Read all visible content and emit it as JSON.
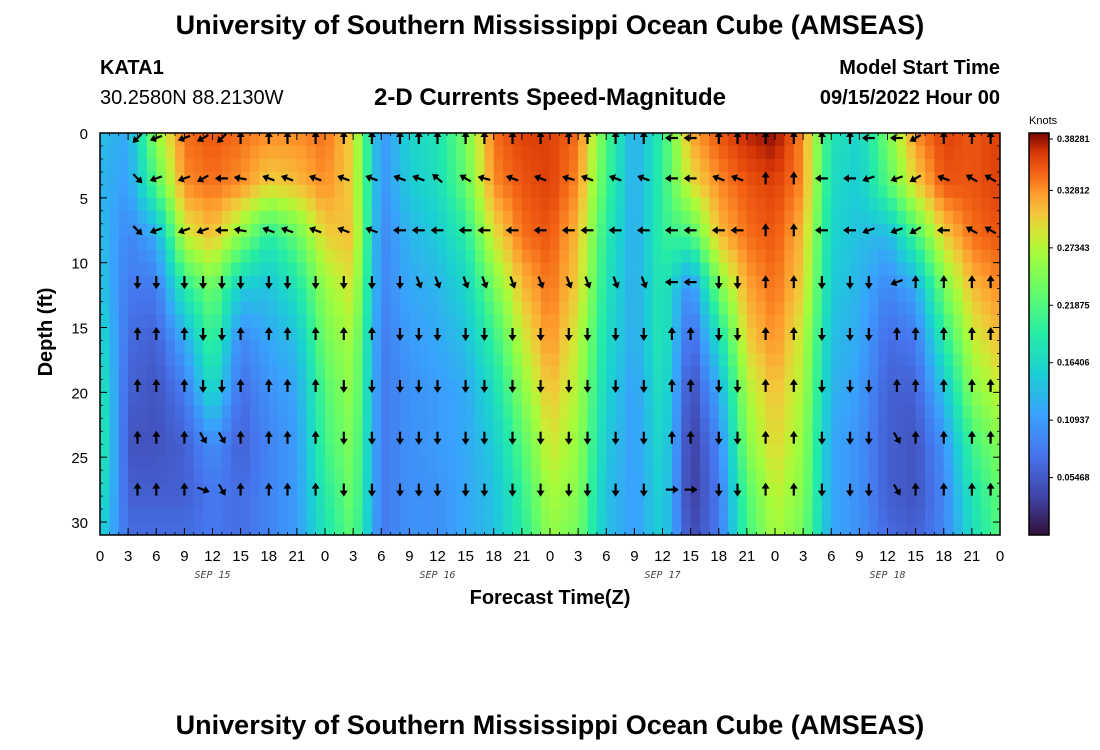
{
  "header": {
    "title": "University of Southern Mississippi Ocean Cube (AMSEAS)",
    "station_id": "KATA1",
    "coordinates": "30.2580N  88.2130W",
    "plot_title": "2-D Currents Speed-Magnitude",
    "model_start_label": "Model Start Time",
    "model_start_value": "09/15/2022 Hour 00"
  },
  "footer": {
    "title": "University of Southern Mississippi Ocean Cube (AMSEAS)"
  },
  "chart_data": {
    "type": "heatmap",
    "title": "2-D Currents Speed-Magnitude",
    "xlabel": "Forecast Time(Z)",
    "ylabel": "Depth (ft)",
    "x_ticks": [
      "0",
      "3",
      "6",
      "9",
      "12",
      "15",
      "18",
      "21",
      "0",
      "3",
      "6",
      "9",
      "12",
      "15",
      "18",
      "21",
      "0",
      "3",
      "6",
      "9",
      "12",
      "15",
      "18",
      "21",
      "0",
      "3",
      "6",
      "9",
      "12",
      "15",
      "18",
      "21",
      "0"
    ],
    "x_tick_hours": [
      0,
      3,
      6,
      9,
      12,
      15,
      18,
      21,
      24,
      27,
      30,
      33,
      36,
      39,
      42,
      45,
      48,
      51,
      54,
      57,
      60,
      63,
      66,
      69,
      72,
      75,
      78,
      81,
      84,
      87,
      90,
      93,
      96
    ],
    "date_labels": [
      {
        "label": "SEP 15",
        "hour": 12
      },
      {
        "label": "SEP 16",
        "hour": 36
      },
      {
        "label": "SEP 17",
        "hour": 60
      },
      {
        "label": "SEP 18",
        "hour": 84
      }
    ],
    "xlim": [
      0,
      96
    ],
    "y_ticks": [
      "0",
      "5",
      "10",
      "15",
      "20",
      "25",
      "30"
    ],
    "y_tick_values": [
      0,
      5,
      10,
      15,
      20,
      25,
      30
    ],
    "ylim": [
      0,
      31
    ],
    "colorbar": {
      "unit": "Knots",
      "min": 0.0,
      "max": 0.3828,
      "tick_labels": [
        "0.38281",
        "0.32812",
        "0.27343",
        "0.21875",
        "0.16406",
        "0.10937",
        "0.05468"
      ],
      "tick_values": [
        0.38281,
        0.32812,
        0.27343,
        0.21875,
        0.16406,
        0.10937,
        0.05468
      ]
    },
    "depths": [
      0,
      4,
      8,
      12,
      16,
      20,
      24,
      28,
      31
    ],
    "hours": [
      0,
      3,
      6,
      9,
      12,
      15,
      18,
      21,
      24,
      27,
      30,
      33,
      36,
      39,
      42,
      45,
      48,
      51,
      54,
      57,
      60,
      63,
      66,
      69,
      72,
      75,
      78,
      81,
      84,
      87,
      90,
      93,
      96
    ],
    "speed": [
      [
        0.14,
        0.12,
        0.26,
        0.34,
        0.35,
        0.34,
        0.33,
        0.33,
        0.34,
        0.3,
        0.1,
        0.16,
        0.18,
        0.24,
        0.34,
        0.36,
        0.36,
        0.34,
        0.22,
        0.12,
        0.2,
        0.32,
        0.35,
        0.37,
        0.38,
        0.33,
        0.18,
        0.16,
        0.24,
        0.33,
        0.36,
        0.35,
        0.36
      ],
      [
        0.13,
        0.11,
        0.22,
        0.33,
        0.34,
        0.33,
        0.3,
        0.31,
        0.33,
        0.3,
        0.1,
        0.15,
        0.17,
        0.23,
        0.33,
        0.35,
        0.36,
        0.33,
        0.21,
        0.12,
        0.2,
        0.29,
        0.33,
        0.35,
        0.36,
        0.33,
        0.17,
        0.15,
        0.22,
        0.3,
        0.35,
        0.35,
        0.36
      ],
      [
        0.14,
        0.09,
        0.12,
        0.28,
        0.31,
        0.25,
        0.19,
        0.23,
        0.3,
        0.31,
        0.09,
        0.13,
        0.15,
        0.19,
        0.29,
        0.34,
        0.35,
        0.31,
        0.19,
        0.12,
        0.2,
        0.21,
        0.31,
        0.34,
        0.35,
        0.31,
        0.16,
        0.14,
        0.13,
        0.21,
        0.3,
        0.34,
        0.35
      ],
      [
        0.15,
        0.08,
        0.08,
        0.19,
        0.24,
        0.15,
        0.14,
        0.18,
        0.26,
        0.29,
        0.09,
        0.12,
        0.13,
        0.16,
        0.24,
        0.31,
        0.34,
        0.3,
        0.18,
        0.12,
        0.19,
        0.09,
        0.24,
        0.32,
        0.34,
        0.3,
        0.15,
        0.13,
        0.09,
        0.12,
        0.24,
        0.31,
        0.33
      ],
      [
        0.17,
        0.07,
        0.06,
        0.12,
        0.21,
        0.09,
        0.12,
        0.14,
        0.24,
        0.27,
        0.08,
        0.11,
        0.12,
        0.14,
        0.2,
        0.28,
        0.33,
        0.28,
        0.17,
        0.12,
        0.19,
        0.06,
        0.17,
        0.3,
        0.33,
        0.28,
        0.14,
        0.12,
        0.07,
        0.08,
        0.19,
        0.28,
        0.31
      ],
      [
        0.19,
        0.06,
        0.05,
        0.08,
        0.17,
        0.07,
        0.1,
        0.12,
        0.22,
        0.26,
        0.08,
        0.1,
        0.11,
        0.12,
        0.17,
        0.25,
        0.31,
        0.27,
        0.16,
        0.11,
        0.18,
        0.04,
        0.12,
        0.27,
        0.31,
        0.27,
        0.13,
        0.11,
        0.06,
        0.06,
        0.14,
        0.25,
        0.28
      ],
      [
        0.2,
        0.05,
        0.05,
        0.06,
        0.1,
        0.06,
        0.09,
        0.11,
        0.21,
        0.25,
        0.08,
        0.1,
        0.11,
        0.12,
        0.15,
        0.22,
        0.29,
        0.26,
        0.15,
        0.11,
        0.17,
        0.03,
        0.09,
        0.25,
        0.3,
        0.26,
        0.12,
        0.1,
        0.06,
        0.05,
        0.1,
        0.21,
        0.25
      ],
      [
        0.18,
        0.06,
        0.06,
        0.06,
        0.08,
        0.07,
        0.09,
        0.11,
        0.19,
        0.24,
        0.08,
        0.1,
        0.1,
        0.12,
        0.14,
        0.2,
        0.27,
        0.25,
        0.14,
        0.11,
        0.16,
        0.03,
        0.08,
        0.22,
        0.28,
        0.25,
        0.12,
        0.1,
        0.06,
        0.05,
        0.09,
        0.18,
        0.23
      ],
      [
        0.16,
        0.07,
        0.07,
        0.07,
        0.08,
        0.07,
        0.09,
        0.11,
        0.18,
        0.23,
        0.08,
        0.1,
        0.1,
        0.12,
        0.14,
        0.19,
        0.26,
        0.24,
        0.14,
        0.11,
        0.16,
        0.04,
        0.08,
        0.21,
        0.27,
        0.24,
        0.12,
        0.1,
        0.07,
        0.06,
        0.09,
        0.17,
        0.22
      ]
    ],
    "arrow_depths": [
      0,
      3.5,
      7.5,
      11.5,
      15.5,
      19.5,
      23.5,
      27.5
    ],
    "arrow_hours": [
      4,
      6,
      9,
      11,
      13,
      15,
      18,
      20,
      23,
      26,
      29,
      32,
      34,
      36,
      39,
      41,
      44,
      47,
      50,
      52,
      55,
      58,
      61,
      63,
      66,
      68,
      71,
      74,
      77,
      80,
      82,
      85,
      87,
      90,
      93,
      95
    ],
    "arrow_angles_deg": [
      [
        225,
        200,
        200,
        210,
        225,
        90,
        90,
        90,
        90,
        90,
        90,
        90,
        90,
        90,
        90,
        90,
        90,
        90,
        90,
        90,
        90,
        90,
        180,
        180,
        90,
        90,
        90,
        90,
        90,
        90,
        180,
        180,
        210,
        90,
        90,
        90
      ],
      [
        315,
        200,
        200,
        210,
        180,
        170,
        160,
        160,
        160,
        160,
        160,
        160,
        160,
        140,
        150,
        165,
        160,
        160,
        165,
        160,
        160,
        160,
        180,
        180,
        160,
        160,
        90,
        90,
        180,
        180,
        200,
        200,
        210,
        160,
        150,
        150
      ],
      [
        315,
        200,
        200,
        200,
        180,
        170,
        160,
        160,
        160,
        160,
        160,
        180,
        180,
        180,
        180,
        180,
        180,
        180,
        180,
        180,
        180,
        180,
        180,
        180,
        180,
        180,
        90,
        90,
        180,
        180,
        200,
        200,
        210,
        180,
        150,
        150
      ],
      [
        270,
        270,
        270,
        270,
        270,
        270,
        270,
        270,
        270,
        270,
        270,
        270,
        290,
        290,
        290,
        290,
        290,
        290,
        290,
        290,
        290,
        290,
        180,
        180,
        270,
        270,
        90,
        90,
        270,
        270,
        270,
        200,
        90,
        90,
        90,
        90
      ],
      [
        90,
        90,
        90,
        270,
        270,
        90,
        90,
        90,
        90,
        90,
        90,
        270,
        270,
        270,
        270,
        270,
        270,
        270,
        270,
        270,
        270,
        270,
        90,
        90,
        270,
        270,
        90,
        90,
        270,
        270,
        270,
        90,
        90,
        90,
        90,
        90
      ],
      [
        90,
        90,
        90,
        270,
        270,
        90,
        90,
        90,
        90,
        270,
        270,
        270,
        270,
        270,
        270,
        270,
        270,
        270,
        270,
        270,
        270,
        270,
        90,
        90,
        270,
        270,
        90,
        90,
        270,
        270,
        270,
        90,
        90,
        90,
        90,
        90
      ],
      [
        90,
        90,
        90,
        300,
        300,
        90,
        90,
        90,
        90,
        270,
        270,
        270,
        270,
        270,
        270,
        270,
        270,
        270,
        270,
        270,
        270,
        270,
        90,
        90,
        270,
        270,
        90,
        90,
        270,
        270,
        270,
        300,
        90,
        90,
        90,
        90
      ],
      [
        90,
        90,
        90,
        340,
        300,
        90,
        90,
        90,
        90,
        270,
        270,
        270,
        270,
        270,
        270,
        270,
        270,
        270,
        270,
        270,
        270,
        270,
        0,
        0,
        270,
        270,
        90,
        90,
        270,
        270,
        270,
        300,
        90,
        90,
        90,
        90
      ]
    ]
  }
}
